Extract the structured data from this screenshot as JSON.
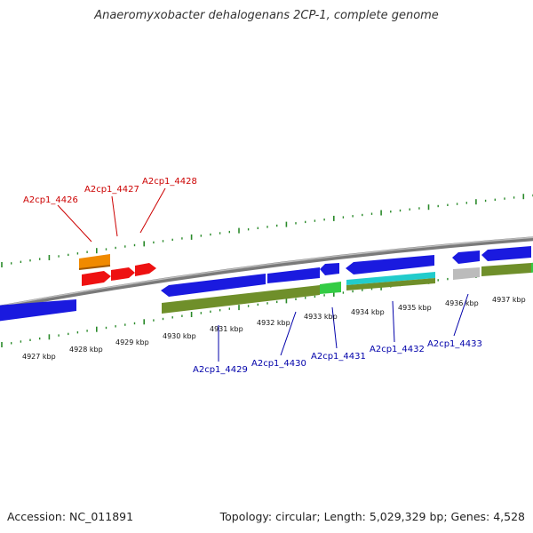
{
  "title": "Anaeromyxobacter dehalogenans 2CP-1, complete genome",
  "footer": {
    "accession": "Accession: NC_011891",
    "summary": "Topology: circular; Length: 5,029,329 bp; Genes: 4,528"
  },
  "colors": {
    "forward_label": "#cc0000",
    "reverse_label": "#0000aa",
    "tick": "#2a8a2a",
    "backbone": "#888888",
    "cds_blue": "#1a1adf",
    "cds_red": "#ee1111",
    "cds_orange": "#f08a00",
    "feature_olive": "#6f8f2a",
    "feature_green": "#33cc44",
    "feature_cyan": "#22cccc",
    "feature_grey": "#bbbbbb"
  },
  "scale_labels": [
    "4927 kbp",
    "4928 kbp",
    "4929 kbp",
    "4930 kbp",
    "4931 kbp",
    "4932 kbp",
    "4933 kbp",
    "4934 kbp",
    "4935 kbp",
    "4936 kbp",
    "4937 kbp"
  ],
  "forward_genes": [
    "A2cp1_4426",
    "A2cp1_4427",
    "A2cp1_4428"
  ],
  "reverse_genes": [
    "A2cp1_4429",
    "A2cp1_4430",
    "A2cp1_4431",
    "A2cp1_4432",
    "A2cp1_4433"
  ]
}
